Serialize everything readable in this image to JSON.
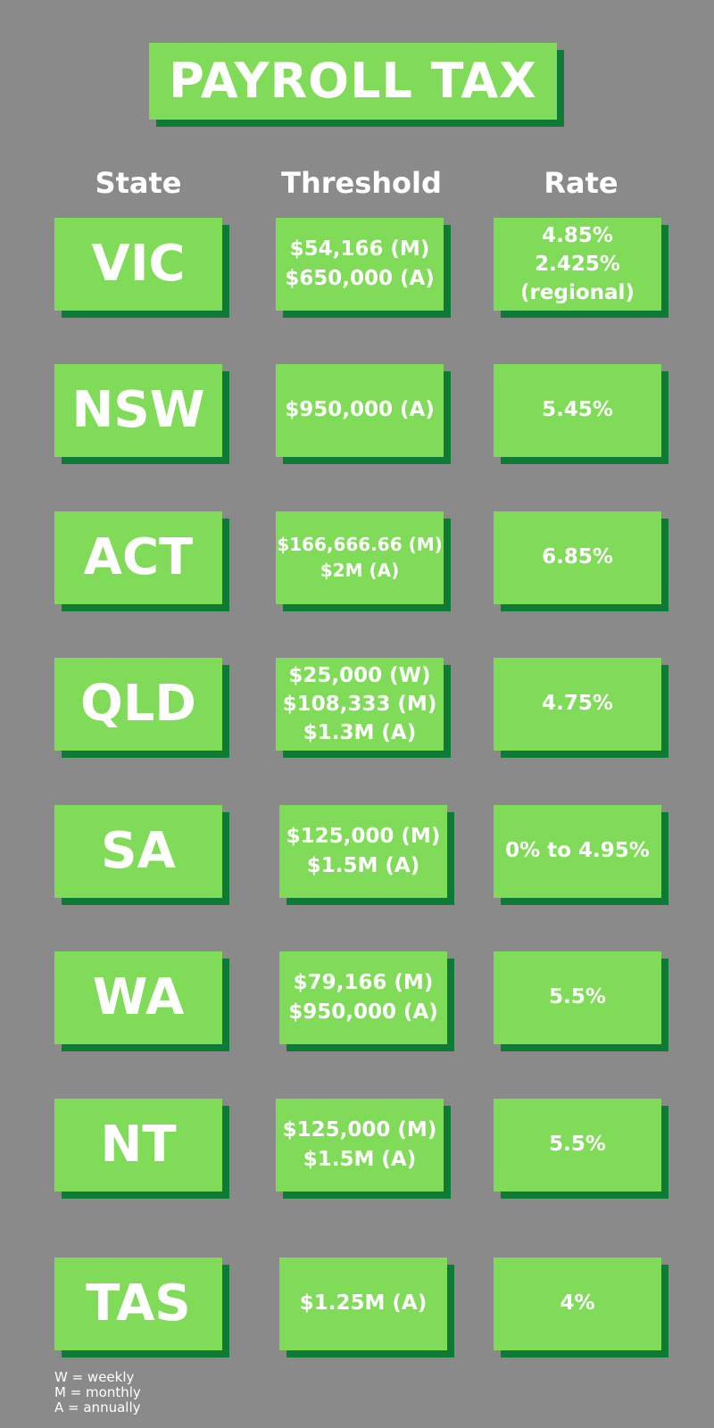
{
  "title": "PAYROLL TAX",
  "headers": {
    "state": "State",
    "threshold": "Threshold",
    "rate": "Rate"
  },
  "rows": [
    {
      "state": "VIC",
      "threshold": [
        "$54,166 (M)",
        "$650,000 (A)"
      ],
      "rate": [
        "4.85%",
        "2.425%",
        "(regional)"
      ]
    },
    {
      "state": "NSW",
      "threshold": [
        "$950,000 (A)"
      ],
      "rate": [
        "5.45%"
      ]
    },
    {
      "state": "ACT",
      "threshold": [
        "$166,666.66 (M)",
        "$2M (A)"
      ],
      "rate": [
        "6.85%"
      ]
    },
    {
      "state": "QLD",
      "threshold": [
        "$25,000 (W)",
        "$108,333 (M)",
        "$1.3M (A)"
      ],
      "rate": [
        "4.75%"
      ]
    },
    {
      "state": "SA",
      "threshold": [
        "$125,000 (M)",
        "$1.5M (A)"
      ],
      "rate": [
        "0% to 4.95%"
      ]
    },
    {
      "state": "WA",
      "threshold": [
        "$79,166 (M)",
        "$950,000 (A)"
      ],
      "rate": [
        "5.5%"
      ]
    },
    {
      "state": "NT",
      "threshold": [
        "$125,000 (M)",
        "$1.5M (A)"
      ],
      "rate": [
        "5.5%"
      ]
    },
    {
      "state": "TAS",
      "threshold": [
        "$1.25M (A)"
      ],
      "rate": [
        "4%"
      ]
    }
  ],
  "legend": [
    "W = weekly",
    "M = monthly",
    "A = annually"
  ],
  "colors": {
    "background": "#8a8a8a",
    "box": "#7fdb58",
    "shadow": "#0d7a35",
    "text": "#ffffff"
  }
}
